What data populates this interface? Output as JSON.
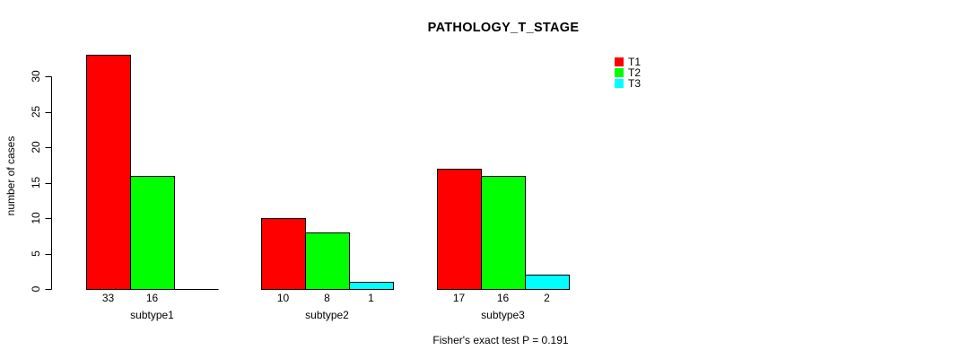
{
  "page": {
    "background": "#FFFFFF"
  },
  "chart_data": {
    "type": "bar",
    "title": "PATHOLOGY_T_STAGE",
    "ylabel": "number of cases",
    "xlabel": "",
    "footnote": "Fisher's exact test P = 0.191",
    "categories": [
      "subtype1",
      "subtype2",
      "subtype3"
    ],
    "series": [
      {
        "name": "T1",
        "color": "#FF0000",
        "values": [
          33,
          10,
          17
        ]
      },
      {
        "name": "T2",
        "color": "#00FF00",
        "values": [
          16,
          8,
          16
        ]
      },
      {
        "name": "T3",
        "color": "#00FFFF",
        "values": [
          0,
          1,
          2
        ]
      }
    ],
    "bar_value_labels": [
      [
        "33",
        "16",
        ""
      ],
      [
        "10",
        "8",
        "1"
      ],
      [
        "17",
        "16",
        "2"
      ]
    ],
    "yticks": [
      0,
      5,
      10,
      15,
      20,
      25,
      30
    ],
    "ylim": [
      0,
      33
    ],
    "grid": false,
    "legend_position": "top-right",
    "bar_border_color": "#000000",
    "axis_color": "#000000"
  }
}
